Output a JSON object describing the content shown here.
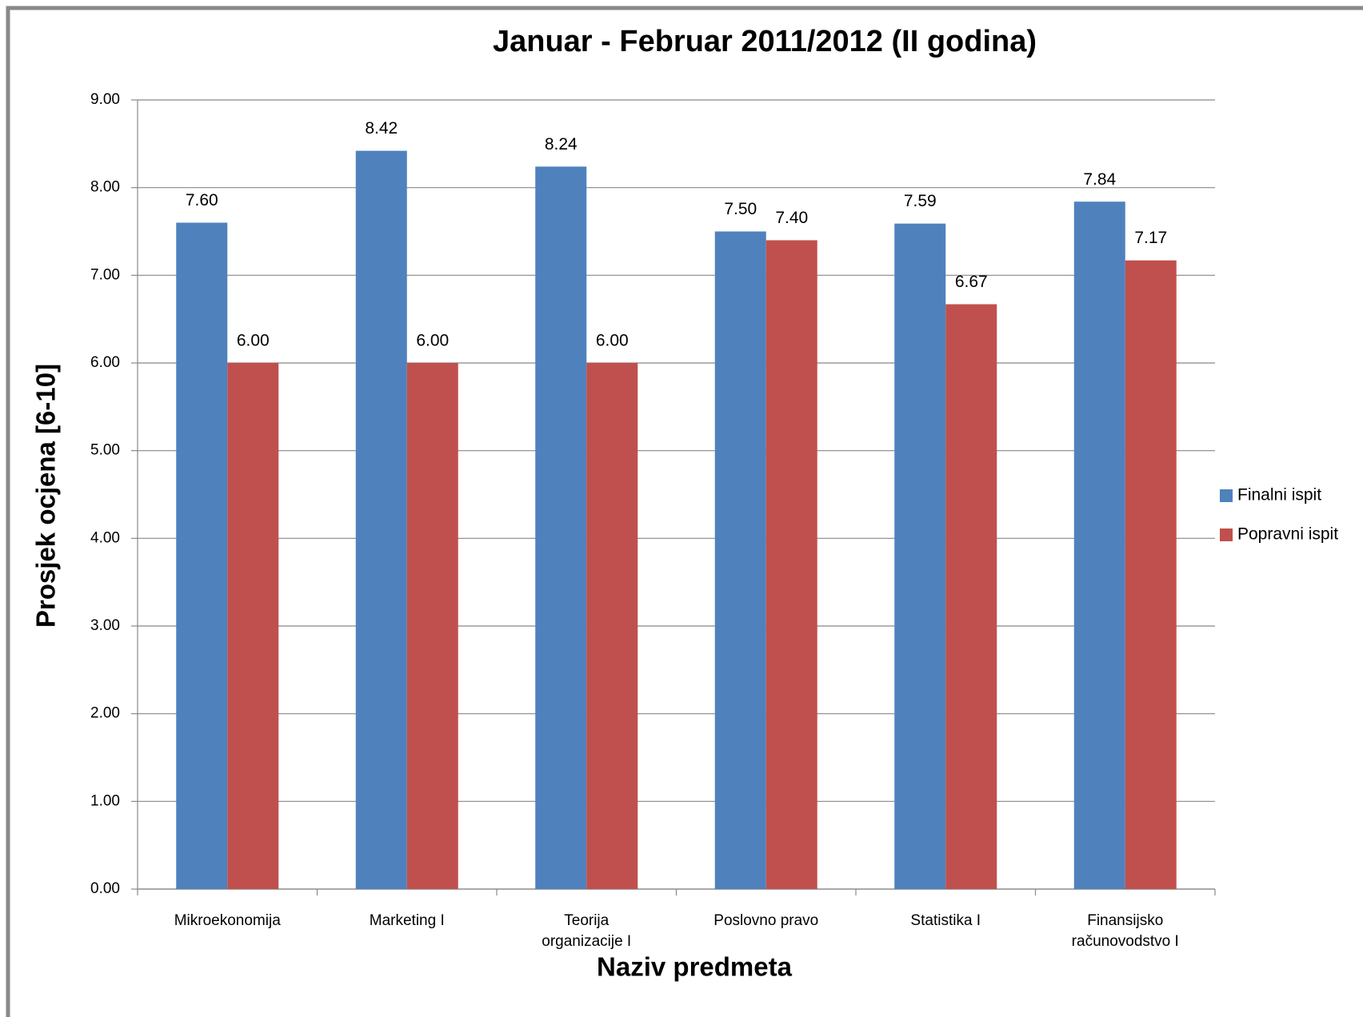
{
  "chart_data": {
    "type": "bar",
    "title": "Januar - Februar 2011/2012 (II godina)",
    "x_label": "Naziv predmeta",
    "y_label": "Prosjek ocjena [6-10]",
    "categories": [
      "Mikroekonomija",
      "Marketing I",
      "Teorija organizacije I",
      "Poslovno pravo",
      "Statistika I",
      "Finansijsko računovodstvo I"
    ],
    "series": [
      {
        "name": "Finalni ispit",
        "color": "#4f81bd",
        "values": [
          7.6,
          8.42,
          8.24,
          7.5,
          7.59,
          7.84
        ],
        "value_labels": [
          "7.60",
          "8.42",
          "8.24",
          "7.50",
          "7.59",
          "7.84"
        ]
      },
      {
        "name": "Popravni ispit",
        "color": "#c0504d",
        "values": [
          6,
          6,
          6,
          7.4,
          6.67,
          7.17
        ],
        "value_labels": [
          "6.00",
          "6.00",
          "6.00",
          "7.40",
          "6.67",
          "7.17"
        ]
      }
    ],
    "ylim": [
      0,
      9
    ],
    "yticks": [
      {
        "value": 0,
        "label": "0.00"
      },
      {
        "value": 1,
        "label": "1.00"
      },
      {
        "value": 2,
        "label": "2.00"
      },
      {
        "value": 3,
        "label": "3.00"
      },
      {
        "value": 4,
        "label": "4.00"
      },
      {
        "value": 5,
        "label": "5.00"
      },
      {
        "value": 6,
        "label": "6.00"
      },
      {
        "value": 7,
        "label": "7.00"
      },
      {
        "value": 8,
        "label": "8.00"
      },
      {
        "value": 9,
        "label": "9.00"
      }
    ],
    "grid": true,
    "legend": "right"
  }
}
